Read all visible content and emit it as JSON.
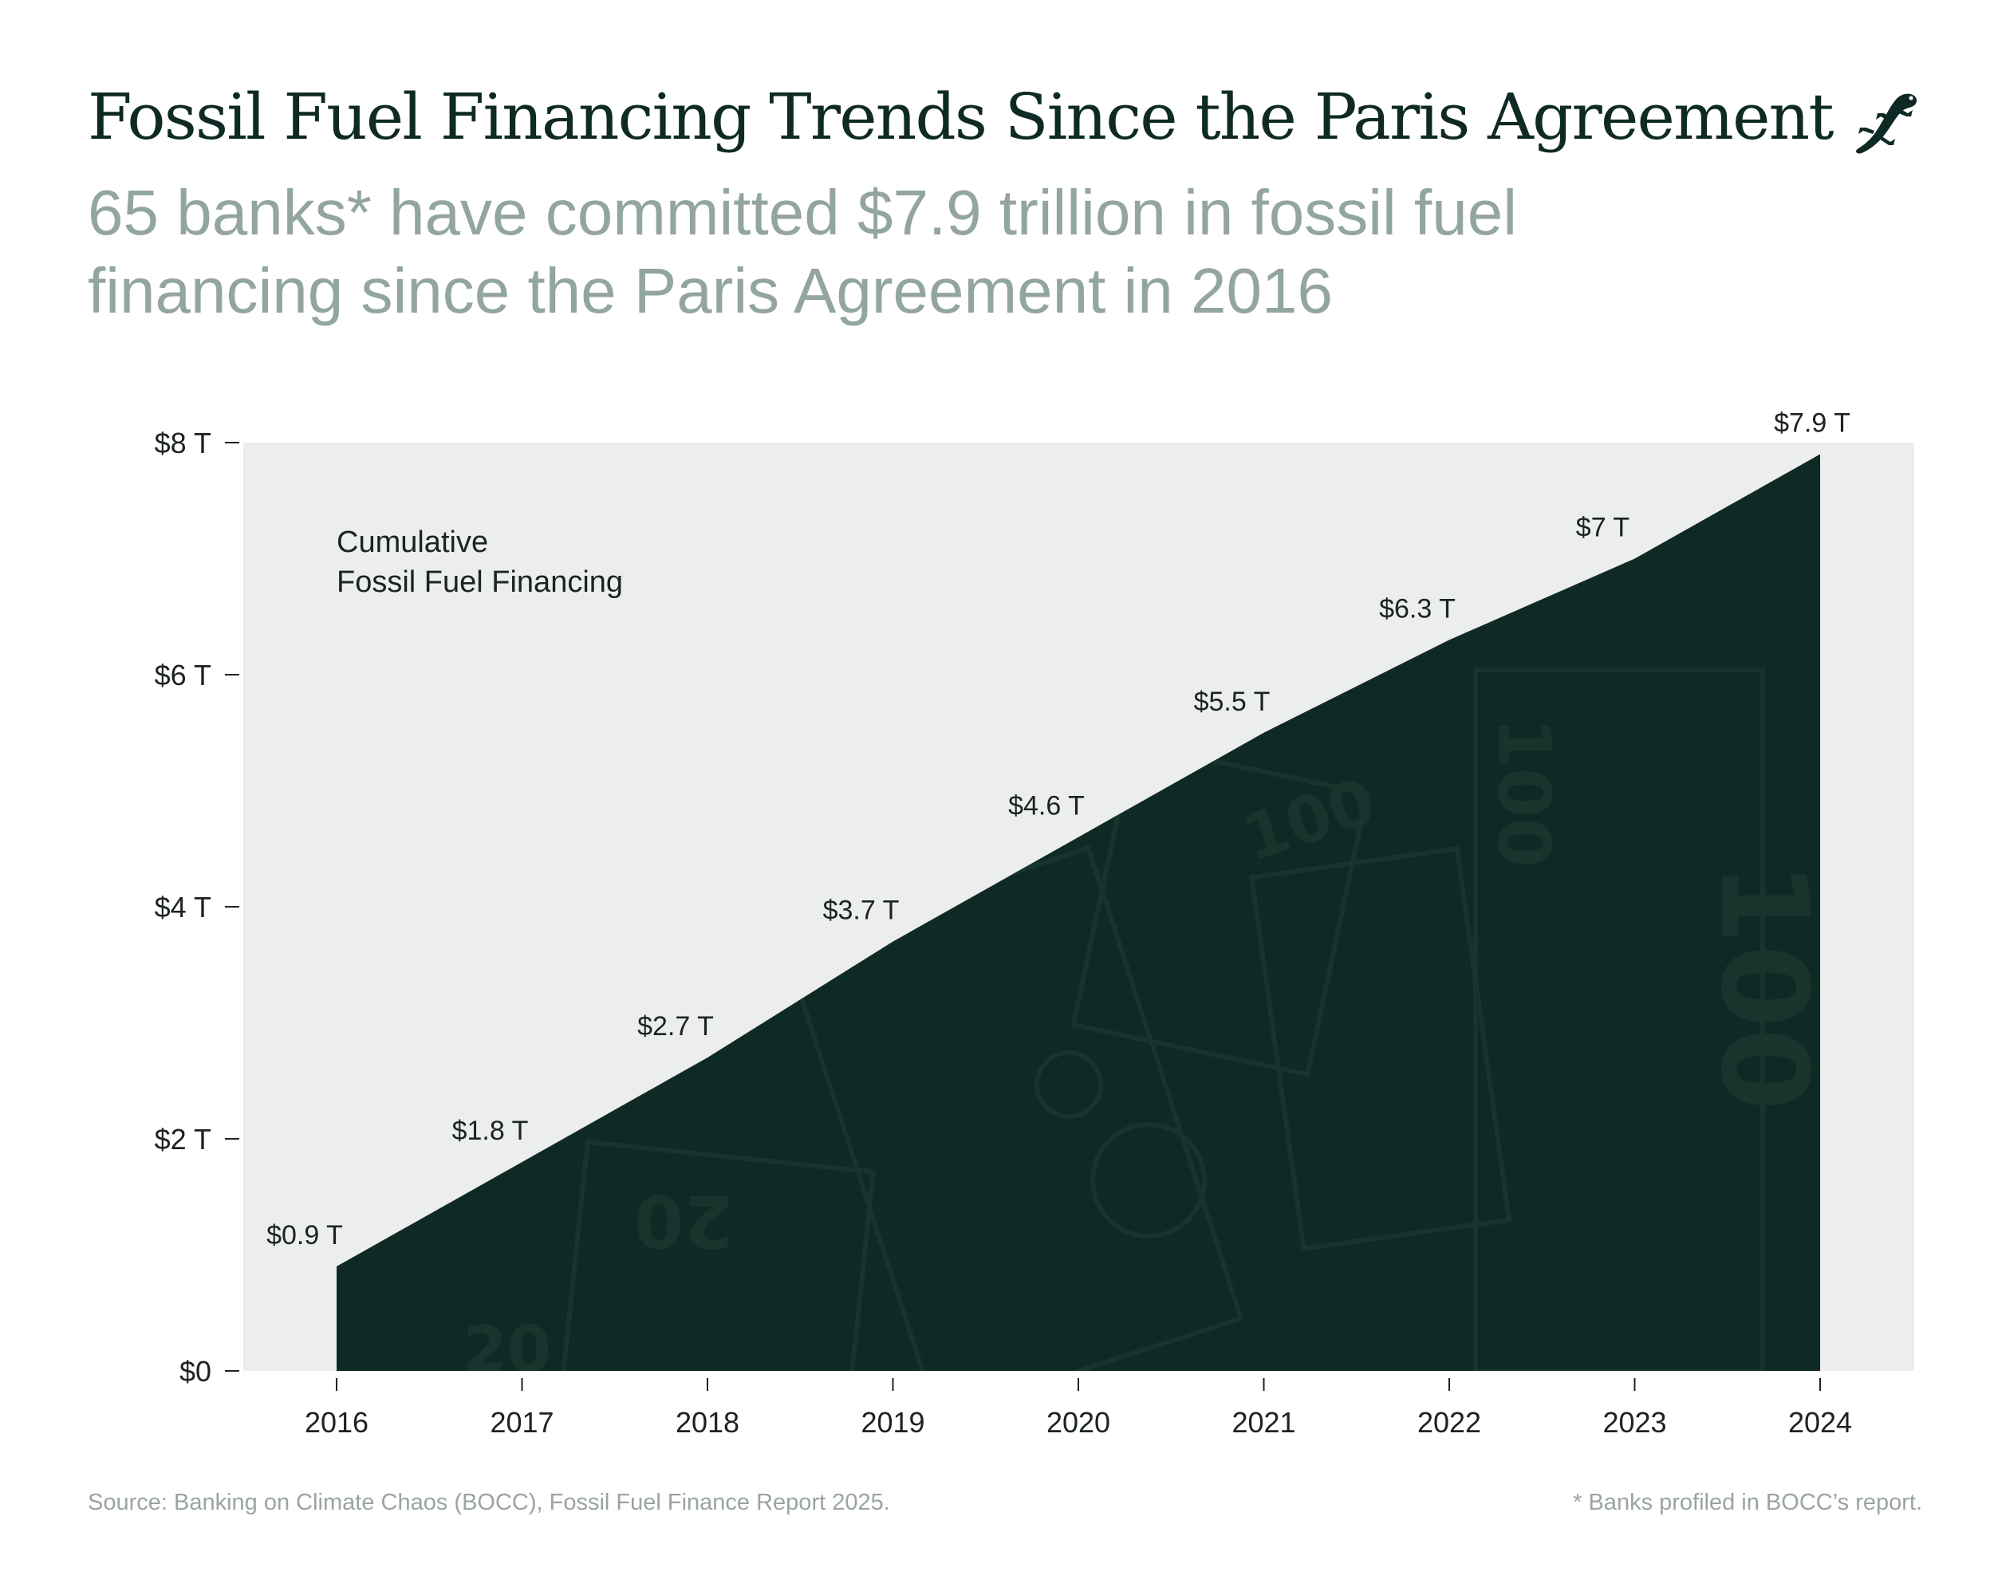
{
  "header": {
    "title": "Fossil Fuel Financing Trends Since the Paris Agreement",
    "subtitle": "65 banks* have committed $7.9 trillion in fossil fuel financing since the Paris Agreement in 2016",
    "logo_icon": "gecko-icon"
  },
  "footer": {
    "source": "Source: Banking on Climate Chaos (BOCC), Fossil Fuel Finance Report 2025.",
    "footnote": "* Banks profiled in BOCC’s report."
  },
  "colors": {
    "area_fill": "#0f2a25",
    "plot_background": "#eceeed",
    "title_color": "#0f2a25",
    "subtitle_color": "#93a59f",
    "axis_text": "#1c2321"
  },
  "chart_data": {
    "type": "area",
    "x": [
      2016,
      2017,
      2018,
      2019,
      2020,
      2021,
      2022,
      2023,
      2024
    ],
    "series": [
      {
        "name": "Cumulative Fossil Fuel Financing",
        "values": [
          0.9,
          1.8,
          2.7,
          3.7,
          4.6,
          5.5,
          6.3,
          7.0,
          7.9
        ],
        "labels": [
          "$0.9 T",
          "$1.8 T",
          "$2.7 T",
          "$3.7 T",
          "$4.6 T",
          "$5.5 T",
          "$6.3 T",
          "$7 T",
          "$7.9 T"
        ]
      }
    ],
    "annotation_lines": [
      "Cumulative",
      "Fossil Fuel Financing"
    ],
    "xlabel": "",
    "ylabel": "",
    "ylim": [
      0,
      8
    ],
    "y_ticks": [
      0,
      2,
      4,
      6,
      8
    ],
    "y_tick_labels": [
      "$0",
      "$2 T",
      "$4 T",
      "$6 T",
      "$8 T"
    ],
    "x_tick_labels": [
      "2016",
      "2017",
      "2018",
      "2019",
      "2020",
      "2021",
      "2022",
      "2023",
      "2024"
    ],
    "grid": false,
    "legend": "none"
  }
}
